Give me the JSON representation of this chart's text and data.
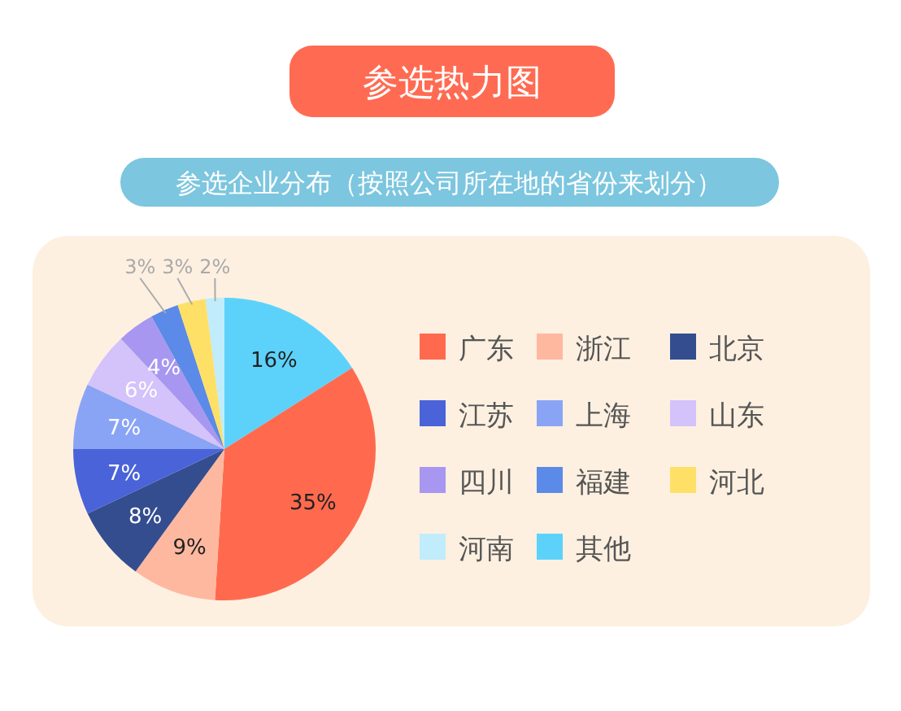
{
  "chart_data": {
    "type": "pie",
    "title": "参选热力图",
    "subtitle": "参选企业分布（按照公司所在地的省份来划分）",
    "categories": [
      "广东",
      "浙江",
      "北京",
      "江苏",
      "上海",
      "山东",
      "四川",
      "福建",
      "河北",
      "河南",
      "其他"
    ],
    "values": [
      35,
      9,
      8,
      7,
      7,
      6,
      4,
      3,
      3,
      2,
      16
    ],
    "colors": [
      "#ff6a4f",
      "#ffb8a0",
      "#344d8f",
      "#4a63d8",
      "#8aa4f5",
      "#d4c2fb",
      "#a797f0",
      "#5b8ae8",
      "#ffe066",
      "#c0ecfb",
      "#5cd2fb"
    ],
    "value_labels": [
      "35%",
      "9%",
      "8%",
      "7%",
      "7%",
      "6%",
      "4%",
      "3%",
      "3%",
      "2%",
      "16%"
    ],
    "legend": "right"
  }
}
